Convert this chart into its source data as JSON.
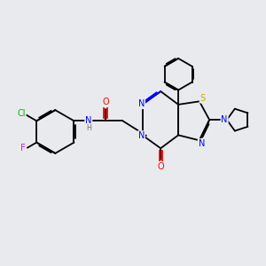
{
  "background_color": "#e8eaed",
  "atom_colors": {
    "N": "#0000ff",
    "O": "#ff0000",
    "S": "#ccaa00",
    "F": "#ff00ff",
    "Cl": "#00bb00",
    "H": "#707070"
  },
  "lw": 1.3,
  "fs": 7.0,
  "fs_small": 5.8
}
